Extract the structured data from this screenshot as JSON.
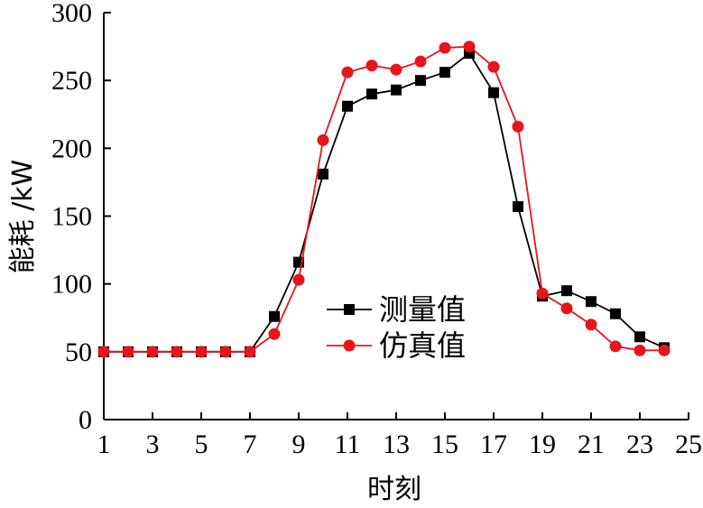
{
  "chart_data": {
    "type": "line",
    "xlabel": "时刻",
    "ylabel": "能耗 /kW",
    "xlim": [
      1,
      25
    ],
    "ylim": [
      0,
      300
    ],
    "x_ticks": [
      "1",
      "3",
      "5",
      "7",
      "9",
      "11",
      "13",
      "15",
      "17",
      "19",
      "21",
      "23",
      "25"
    ],
    "y_ticks": [
      "0",
      "50",
      "100",
      "150",
      "200",
      "250",
      "300"
    ],
    "grid": false,
    "legend_position": "center-right",
    "x": [
      1,
      2,
      3,
      4,
      5,
      6,
      7,
      8,
      9,
      10,
      11,
      12,
      13,
      14,
      15,
      16,
      17,
      18,
      19,
      20,
      21,
      22,
      23,
      24
    ],
    "series": [
      {
        "name": "测量值",
        "color": "#000000",
        "marker": "square",
        "values": [
          50,
          50,
          50,
          50,
          50,
          50,
          50,
          76,
          116,
          181,
          231,
          240,
          243,
          250,
          256,
          270,
          241,
          157,
          91,
          95,
          87,
          78,
          61,
          53
        ]
      },
      {
        "name": "仿真值",
        "color": "#e8141b",
        "marker": "circle",
        "values": [
          50,
          50,
          50,
          50,
          50,
          50,
          50,
          63,
          103,
          206,
          256,
          261,
          258,
          264,
          274,
          275,
          260,
          216,
          93,
          82,
          70,
          54,
          51,
          51
        ]
      }
    ]
  }
}
